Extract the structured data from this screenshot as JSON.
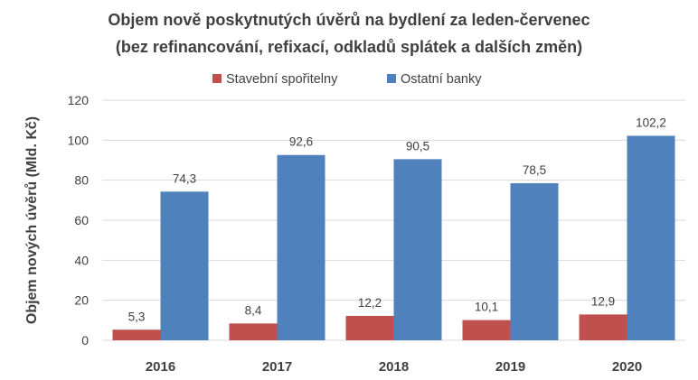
{
  "chart_data": {
    "type": "bar",
    "title_lines": [
      "Objem nově poskytnutých úvěrů na bydlení za leden-červenec",
      "(bez refinancování, refixací, odkladů splátek a dalších změn)"
    ],
    "ylabel": "Objem nových úvěrů (Mld. Kč)",
    "xlabel": "",
    "ylim": [
      0,
      120
    ],
    "yticks": [
      "0",
      "20",
      "40",
      "60",
      "80",
      "100",
      "120"
    ],
    "ytick_values": [
      0,
      20,
      40,
      60,
      80,
      100,
      120
    ],
    "grid": true,
    "legend_position": "top",
    "categories": [
      "2016",
      "2017",
      "2018",
      "2019",
      "2020"
    ],
    "series": [
      {
        "name": "Stavební spořitelny",
        "color": "#c0504d",
        "values": [
          5.3,
          8.4,
          12.2,
          10.1,
          12.9
        ],
        "labels": [
          "5,3",
          "8,4",
          "12,2",
          "10,1",
          "12,9"
        ]
      },
      {
        "name": "Ostatní banky",
        "color": "#4f81bd",
        "values": [
          74.3,
          92.6,
          90.5,
          78.5,
          102.2
        ],
        "labels": [
          "74,3",
          "92,6",
          "90,5",
          "78,5",
          "102,2"
        ]
      }
    ]
  }
}
